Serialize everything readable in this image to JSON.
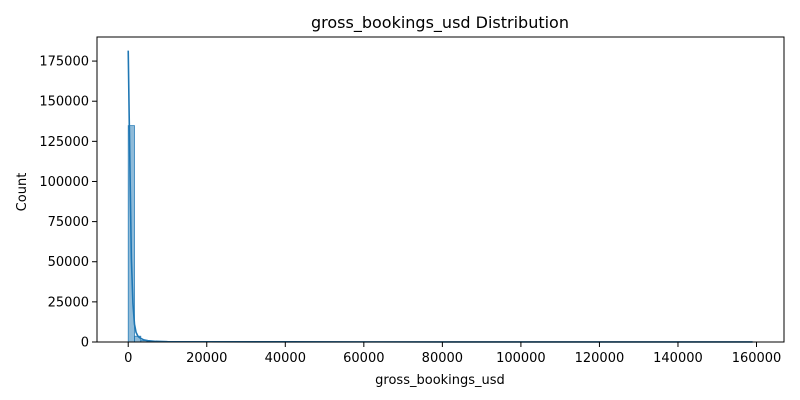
{
  "chart_data": {
    "type": "bar",
    "title": "gross_bookings_usd Distribution",
    "xlabel": "gross_bookings_usd",
    "ylabel": "Count",
    "xlim": [
      -7950,
      167000
    ],
    "ylim": [
      0,
      190000
    ],
    "x_ticks": [
      0,
      20000,
      40000,
      60000,
      80000,
      100000,
      120000,
      140000,
      160000
    ],
    "y_ticks": [
      0,
      25000,
      50000,
      75000,
      100000,
      125000,
      150000,
      175000
    ],
    "grid": false,
    "legend": "none",
    "series_color": "#1f77b4",
    "histogram": {
      "bin_width": 1600,
      "bins": [
        {
          "x0": 0,
          "x1": 1600,
          "count": 134800
        },
        {
          "x0": 1600,
          "x1": 3200,
          "count": 3600
        },
        {
          "x0": 3200,
          "x1": 4800,
          "count": 900
        },
        {
          "x0": 4800,
          "x1": 6400,
          "count": 400
        },
        {
          "x0": 6400,
          "x1": 8000,
          "count": 200
        },
        {
          "x0": 8000,
          "x1": 9600,
          "count": 100
        }
      ]
    },
    "kde": {
      "x": [
        0,
        400,
        800,
        1200,
        1600,
        2000,
        2500,
        3000,
        4000,
        5000,
        7000,
        10000,
        20000,
        40000,
        60000,
        80000,
        100000,
        120000,
        140000,
        159000
      ],
      "y": [
        181500,
        115000,
        52000,
        24000,
        11000,
        6000,
        3500,
        2500,
        1300,
        800,
        400,
        200,
        150,
        100,
        80,
        60,
        50,
        40,
        30,
        20
      ]
    }
  }
}
